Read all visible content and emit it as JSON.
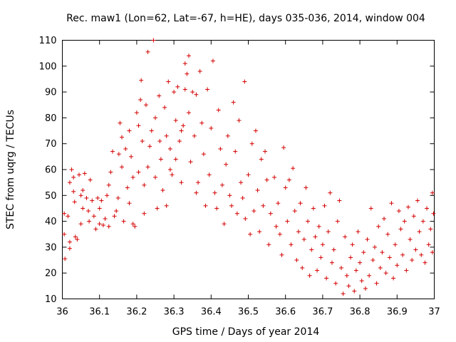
{
  "chart_data": {
    "type": "scatter",
    "title": "Rec. maw1 (Lon=62, Lat=-67, h=HE), days 035-036, 2014, window 004",
    "xlabel": "GPS time / Days of year 2014",
    "ylabel": "STEC from uqrg / TECUs",
    "xlim": [
      36,
      37
    ],
    "ylim": [
      10,
      110
    ],
    "xticks": [
      "36",
      "36.1",
      "36.2",
      "36.3",
      "36.4",
      "36.5",
      "36.6",
      "36.7",
      "36.8",
      "36.9",
      "37"
    ],
    "yticks": [
      "10",
      "20",
      "30",
      "40",
      "50",
      "60",
      "70",
      "80",
      "90",
      "100",
      "110"
    ],
    "grid": false,
    "marker": "plus",
    "color": "#d40000",
    "series": [
      {
        "points": [
          [
            36.005,
            43
          ],
          [
            36.005,
            35
          ],
          [
            36.007,
            25.5
          ],
          [
            36.015,
            42
          ],
          [
            36.02,
            55
          ],
          [
            36.02,
            32
          ],
          [
            36.02,
            29.5
          ],
          [
            36.025,
            60
          ],
          [
            36.03,
            57
          ],
          [
            36.03,
            51.5
          ],
          [
            36.033,
            47.5
          ],
          [
            36.035,
            34
          ],
          [
            36.04,
            33
          ],
          [
            36.045,
            58
          ],
          [
            36.05,
            50
          ],
          [
            36.05,
            39
          ],
          [
            36.055,
            52
          ],
          [
            36.055,
            45
          ],
          [
            36.06,
            58.5
          ],
          [
            36.065,
            49
          ],
          [
            36.07,
            44
          ],
          [
            36.072,
            40
          ],
          [
            36.075,
            56
          ],
          [
            36.08,
            48
          ],
          [
            36.085,
            42
          ],
          [
            36.09,
            37
          ],
          [
            36.095,
            49
          ],
          [
            36.1,
            45
          ],
          [
            36.1,
            39
          ],
          [
            36.105,
            48
          ],
          [
            36.11,
            38.5
          ],
          [
            36.115,
            41
          ],
          [
            36.12,
            50
          ],
          [
            36.125,
            54
          ],
          [
            36.125,
            38
          ],
          [
            36.13,
            59
          ],
          [
            36.135,
            67
          ],
          [
            36.14,
            42
          ],
          [
            36.145,
            44
          ],
          [
            36.15,
            49
          ],
          [
            36.152,
            66
          ],
          [
            36.155,
            78
          ],
          [
            36.16,
            72.5
          ],
          [
            36.16,
            61
          ],
          [
            36.165,
            40
          ],
          [
            36.17,
            68
          ],
          [
            36.175,
            53
          ],
          [
            36.18,
            75
          ],
          [
            36.18,
            47
          ],
          [
            36.185,
            65
          ],
          [
            36.19,
            57
          ],
          [
            36.19,
            39
          ],
          [
            36.195,
            38
          ],
          [
            36.2,
            82
          ],
          [
            36.205,
            77
          ],
          [
            36.205,
            59
          ],
          [
            36.21,
            87
          ],
          [
            36.212,
            94.5
          ],
          [
            36.215,
            71
          ],
          [
            36.22,
            54
          ],
          [
            36.22,
            43
          ],
          [
            36.225,
            85
          ],
          [
            36.23,
            105.5
          ],
          [
            36.23,
            61
          ],
          [
            36.235,
            69
          ],
          [
            36.24,
            75
          ],
          [
            36.245,
            110
          ],
          [
            36.25,
            80
          ],
          [
            36.25,
            57
          ],
          [
            36.255,
            45
          ],
          [
            36.26,
            88.5
          ],
          [
            36.262,
            71
          ],
          [
            36.265,
            64
          ],
          [
            36.27,
            52
          ],
          [
            36.275,
            84
          ],
          [
            36.28,
            73
          ],
          [
            36.28,
            46
          ],
          [
            36.285,
            94
          ],
          [
            36.29,
            68
          ],
          [
            36.29,
            60
          ],
          [
            36.295,
            58
          ],
          [
            36.3,
            90
          ],
          [
            36.305,
            79
          ],
          [
            36.305,
            64
          ],
          [
            36.31,
            92
          ],
          [
            36.315,
            71
          ],
          [
            36.32,
            75
          ],
          [
            36.32,
            55
          ],
          [
            36.325,
            77
          ],
          [
            36.33,
            101
          ],
          [
            36.33,
            91
          ],
          [
            36.335,
            97
          ],
          [
            36.34,
            104
          ],
          [
            36.34,
            82
          ],
          [
            36.345,
            63
          ],
          [
            36.35,
            90
          ],
          [
            36.355,
            73
          ],
          [
            36.36,
            89
          ],
          [
            36.36,
            51
          ],
          [
            36.365,
            55
          ],
          [
            36.37,
            98
          ],
          [
            36.375,
            78
          ],
          [
            36.38,
            66
          ],
          [
            36.385,
            46
          ],
          [
            36.39,
            91
          ],
          [
            36.395,
            58
          ],
          [
            36.4,
            76
          ],
          [
            36.405,
            102
          ],
          [
            36.41,
            51
          ],
          [
            36.415,
            45
          ],
          [
            36.42,
            83
          ],
          [
            36.425,
            68
          ],
          [
            36.43,
            54
          ],
          [
            36.435,
            39
          ],
          [
            36.44,
            62
          ],
          [
            36.445,
            73
          ],
          [
            36.45,
            50
          ],
          [
            36.455,
            46
          ],
          [
            36.46,
            86
          ],
          [
            36.465,
            67
          ],
          [
            36.47,
            43
          ],
          [
            36.475,
            79
          ],
          [
            36.48,
            55
          ],
          [
            36.485,
            49
          ],
          [
            36.49,
            94
          ],
          [
            36.492,
            41
          ],
          [
            36.5,
            58
          ],
          [
            36.505,
            35
          ],
          [
            36.51,
            70
          ],
          [
            36.515,
            44
          ],
          [
            36.52,
            75
          ],
          [
            36.525,
            52
          ],
          [
            36.53,
            36
          ],
          [
            36.535,
            64
          ],
          [
            36.54,
            46
          ],
          [
            36.545,
            67
          ],
          [
            36.55,
            56
          ],
          [
            36.555,
            31
          ],
          [
            36.56,
            43
          ],
          [
            36.57,
            57
          ],
          [
            36.575,
            38
          ],
          [
            36.58,
            47
          ],
          [
            36.585,
            35
          ],
          [
            36.59,
            27
          ],
          [
            36.595,
            68.5
          ],
          [
            36.6,
            53
          ],
          [
            36.605,
            40
          ],
          [
            36.61,
            56
          ],
          [
            36.615,
            31
          ],
          [
            36.62,
            60.5
          ],
          [
            36.625,
            44
          ],
          [
            36.63,
            25
          ],
          [
            36.635,
            36
          ],
          [
            36.64,
            47
          ],
          [
            36.645,
            22
          ],
          [
            36.65,
            33
          ],
          [
            36.655,
            53
          ],
          [
            36.66,
            40
          ],
          [
            36.665,
            19
          ],
          [
            36.67,
            29
          ],
          [
            36.675,
            45
          ],
          [
            36.68,
            34
          ],
          [
            36.685,
            21
          ],
          [
            36.69,
            38
          ],
          [
            36.695,
            26
          ],
          [
            36.7,
            31
          ],
          [
            36.705,
            46
          ],
          [
            36.71,
            18
          ],
          [
            36.715,
            36
          ],
          [
            36.72,
            51
          ],
          [
            36.725,
            24
          ],
          [
            36.73,
            29
          ],
          [
            36.735,
            16
          ],
          [
            36.74,
            40
          ],
          [
            36.745,
            48
          ],
          [
            36.75,
            22
          ],
          [
            36.755,
            12
          ],
          [
            36.76,
            34
          ],
          [
            36.765,
            19
          ],
          [
            36.77,
            15
          ],
          [
            36.775,
            26
          ],
          [
            36.78,
            31
          ],
          [
            36.785,
            13
          ],
          [
            36.79,
            21
          ],
          [
            36.795,
            36
          ],
          [
            36.8,
            24
          ],
          [
            36.805,
            17
          ],
          [
            36.81,
            28
          ],
          [
            36.815,
            14
          ],
          [
            36.82,
            33
          ],
          [
            36.825,
            19
          ],
          [
            36.83,
            45
          ],
          [
            36.835,
            25
          ],
          [
            36.84,
            30
          ],
          [
            36.845,
            16
          ],
          [
            36.85,
            38
          ],
          [
            36.855,
            22
          ],
          [
            36.86,
            28
          ],
          [
            36.865,
            41
          ],
          [
            36.87,
            20
          ],
          [
            36.875,
            35
          ],
          [
            36.88,
            26
          ],
          [
            36.885,
            47
          ],
          [
            36.89,
            18
          ],
          [
            36.895,
            31
          ],
          [
            36.9,
            23
          ],
          [
            36.905,
            44
          ],
          [
            36.91,
            37
          ],
          [
            36.915,
            27
          ],
          [
            36.92,
            40
          ],
          [
            36.925,
            21
          ],
          [
            36.93,
            45.5
          ],
          [
            36.935,
            33
          ],
          [
            36.94,
            25
          ],
          [
            36.945,
            42
          ],
          [
            36.95,
            29
          ],
          [
            36.955,
            48
          ],
          [
            36.96,
            36
          ],
          [
            36.965,
            27
          ],
          [
            36.97,
            40
          ],
          [
            36.975,
            24
          ],
          [
            36.98,
            45
          ],
          [
            36.985,
            31
          ],
          [
            36.99,
            37
          ],
          [
            36.995,
            51
          ],
          [
            36.995,
            28
          ],
          [
            36.998,
            43
          ]
        ]
      }
    ]
  }
}
